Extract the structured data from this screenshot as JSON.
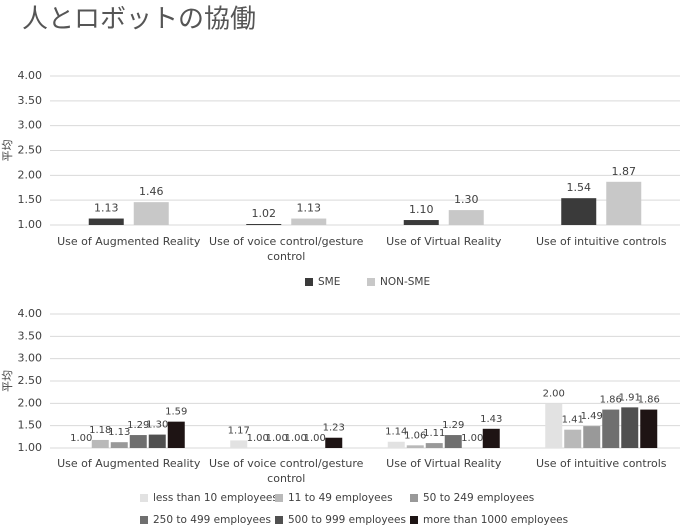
{
  "title": "人とロボットの協働",
  "chart_data": [
    {
      "type": "bar",
      "ylabel": "平均",
      "categories": [
        "Use of Augmented Reality",
        "Use of voice control/gesture control",
        "Use of Virtual Reality",
        "Use of intuitive controls"
      ],
      "series": [
        {
          "name": "SME",
          "color": "#3a3a3a",
          "values": [
            1.13,
            1.02,
            1.1,
            1.54
          ],
          "value_labels": [
            "1.13",
            "1.02",
            "1.10",
            "1.54"
          ]
        },
        {
          "name": "NON-SME",
          "color": "#c8c8c8",
          "values": [
            1.46,
            1.13,
            1.3,
            1.87
          ],
          "value_labels": [
            "1.46",
            "1.13",
            "1.30",
            "1.87"
          ]
        }
      ],
      "ylim": [
        1,
        4
      ],
      "yticks": [
        {
          "value": 1,
          "label": "1.00"
        },
        {
          "value": 1.5,
          "label": "1.50"
        },
        {
          "value": 2,
          "label": "2.00"
        },
        {
          "value": 2.5,
          "label": "2.50"
        },
        {
          "value": 3,
          "label": "3.00"
        },
        {
          "value": 3.5,
          "label": "3.50"
        },
        {
          "value": 4,
          "label": "4.00"
        }
      ],
      "grid": true
    },
    {
      "type": "bar",
      "ylabel": "平均",
      "categories": [
        "Use of Augmented Reality",
        "Use of voice control/gesture control",
        "Use of Virtual Reality",
        "Use of intuitive controls"
      ],
      "series": [
        {
          "name": "less than 10 employees",
          "color": "#e2e2e2",
          "values": [
            1,
            1.17,
            1.14,
            2
          ],
          "value_labels": [
            "1.00",
            "1.17",
            "1.14",
            "2.00"
          ]
        },
        {
          "name": "11 to 49 employees",
          "color": "#b9b9b9",
          "values": [
            1.18,
            1,
            1.06,
            1.41
          ],
          "value_labels": [
            "1.18",
            "1.00",
            "1.06",
            "1.41"
          ]
        },
        {
          "name": "50 to 249 employees",
          "color": "#999999",
          "values": [
            1.13,
            1,
            1.11,
            1.49
          ],
          "value_labels": [
            "1.13",
            "1.00",
            "1.11",
            "1.49"
          ]
        },
        {
          "name": "250 to 499 employees",
          "color": "#6f6f6f",
          "values": [
            1.29,
            1,
            1.29,
            1.86
          ],
          "value_labels": [
            "1.29",
            "1.00",
            "1.29",
            "1.86"
          ]
        },
        {
          "name": "500 to 999 employees",
          "color": "#505050",
          "values": [
            1.3,
            1,
            1,
            1.91
          ],
          "value_labels": [
            "1.30",
            "1.00",
            "1.00",
            "1.91"
          ]
        },
        {
          "name": "more than 1000 employees",
          "color": "#1e1414",
          "values": [
            1.59,
            1.23,
            1.43,
            1.86
          ],
          "value_labels": [
            "1.59",
            "1.23",
            "1.43",
            "1.86"
          ]
        }
      ],
      "ylim": [
        1,
        4
      ],
      "yticks": [
        {
          "value": 1,
          "label": "1.00"
        },
        {
          "value": 1.5,
          "label": "1.50"
        },
        {
          "value": 2,
          "label": "2.00"
        },
        {
          "value": 2.5,
          "label": "2.50"
        },
        {
          "value": 3,
          "label": "3.00"
        },
        {
          "value": 3.5,
          "label": "3.50"
        },
        {
          "value": 4,
          "label": "4.00"
        }
      ],
      "grid": true
    }
  ]
}
